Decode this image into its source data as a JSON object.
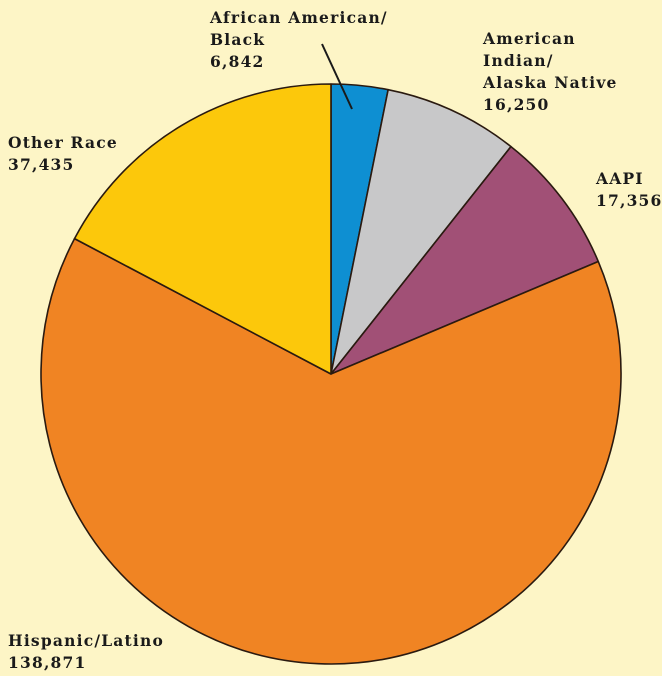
{
  "chart_data": {
    "type": "pie",
    "title": "",
    "start_angle_deg": 0,
    "direction": "clockwise",
    "slices": [
      {
        "label": "African American/ Black",
        "label_lines": [
          "African American/",
          "Black"
        ],
        "value_text": "6,842",
        "value": 6842,
        "color": "#0E8FD2"
      },
      {
        "label": "American Indian/ Alaska Native",
        "label_lines": [
          "American",
          "Indian/",
          "Alaska Native"
        ],
        "value_text": "16,250",
        "value": 16250,
        "color": "#C8C8C9"
      },
      {
        "label": "AAPI",
        "label_lines": [
          "AAPI"
        ],
        "value_text": "17,356",
        "value": 17356,
        "color": "#A15076"
      },
      {
        "label": "Hispanic/Latino",
        "label_lines": [
          "Hispanic/Latino"
        ],
        "value_text": "138,871",
        "value": 138871,
        "color": "#F08423"
      },
      {
        "label": "Other Race",
        "label_lines": [
          "Other Race"
        ],
        "value_text": "37,435",
        "value": 37435,
        "color": "#FCC80B"
      }
    ],
    "background": "#FDF5C6",
    "outline_color": "#2A1A10"
  }
}
